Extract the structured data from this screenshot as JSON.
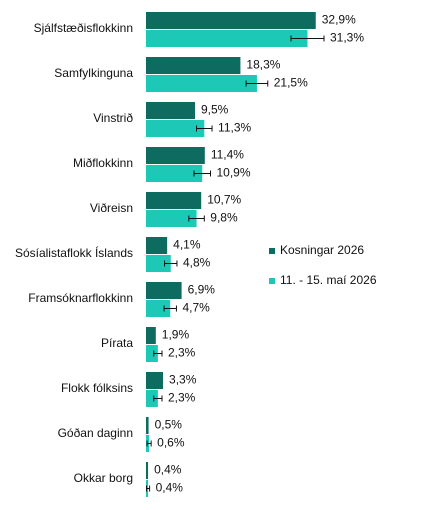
{
  "chart_data": {
    "type": "bar",
    "orientation": "horizontal",
    "categories": [
      "Sjálfstæðisflokkinn",
      "Samfylkinguna",
      "Vinstrið",
      "Miðflokkinn",
      "Viðreisn",
      "Sósíalistaflokk Íslands",
      "Framsóknarflokkinn",
      "Pírata",
      "Flokk fólksins",
      "Góðan daginn",
      "Okkar borg"
    ],
    "series": [
      {
        "name": "Kosningar 2026",
        "color": "#0e6b60",
        "values": [
          32.9,
          18.3,
          9.5,
          11.4,
          10.7,
          4.1,
          6.9,
          1.9,
          3.3,
          0.5,
          0.4
        ],
        "value_labels": [
          "32,9%",
          "18,3%",
          "9,5%",
          "11,4%",
          "10,7%",
          "4,1%",
          "6,9%",
          "1,9%",
          "3,3%",
          "0,5%",
          "0,4%"
        ]
      },
      {
        "name": "11. - 15. maí 2026",
        "color": "#1ec8b6",
        "values": [
          31.3,
          21.5,
          11.3,
          10.9,
          9.8,
          4.8,
          4.7,
          2.3,
          2.3,
          0.6,
          0.4
        ],
        "errors": [
          3.2,
          2.1,
          1.5,
          1.6,
          1.5,
          1.2,
          1.2,
          0.8,
          0.8,
          0.4,
          0.3
        ],
        "value_labels": [
          "31,3%",
          "21,5%",
          "11,3%",
          "10,9%",
          "9,8%",
          "4,8%",
          "4,7%",
          "2,3%",
          "2,3%",
          "0,6%",
          "0,4%"
        ]
      }
    ],
    "legend": "right"
  }
}
